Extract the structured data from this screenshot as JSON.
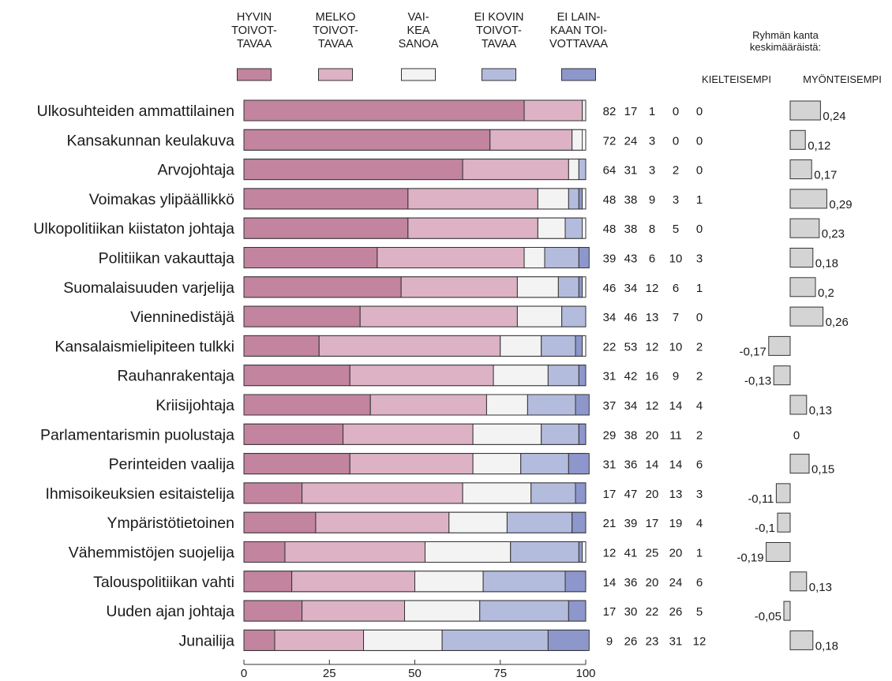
{
  "chart_data": {
    "type": "bar",
    "orientation": "horizontal",
    "stacked": true,
    "xlim": [
      0,
      100
    ],
    "x_ticks": [
      "0",
      "25",
      "50",
      "75",
      "100"
    ],
    "legend": [
      {
        "label_lines": [
          "HYVIN",
          "TOIVOT-",
          "TAVAA"
        ],
        "color": "#c2849f"
      },
      {
        "label_lines": [
          "MELKO",
          "TOIVOT-",
          "TAVAA"
        ],
        "color": "#dcb2c4"
      },
      {
        "label_lines": [
          "VAI-",
          "KEA",
          "SANOA"
        ],
        "color": "#f3f3f3"
      },
      {
        "label_lines": [
          "EI KOVIN",
          "TOIVOT-",
          "TAVAA"
        ],
        "color": "#b4bcdd"
      },
      {
        "label_lines": [
          "EI LAIN-",
          "KAAN TOI-",
          "VOTTAVAA"
        ],
        "color": "#8d97cb"
      }
    ],
    "categories": [
      "Ulkosuhteiden ammattilainen",
      "Kansakunnan keulakuva",
      "Arvojohtaja",
      "Voimakas ylipäällikkö",
      "Ulkopolitiikan kiistaton johtaja",
      "Politiikan vakauttaja",
      "Suomalaisuuden varjelija",
      "Vienninedistäjä",
      "Kansalaismielipiteen tulkki",
      "Rauhanrakentaja",
      "Kriisijohtaja",
      "Parlamentarismin puolustaja",
      "Perinteiden vaalija",
      "Ihmisoikeuksien esitaistelija",
      "Ympäristötietoinen",
      "Vähemmistöjen suojelija",
      "Talouspolitiikan vahti",
      "Uuden ajan johtaja",
      "Junailija"
    ],
    "values": [
      [
        82,
        17,
        1,
        0,
        0
      ],
      [
        72,
        24,
        3,
        0,
        0
      ],
      [
        64,
        31,
        3,
        2,
        0
      ],
      [
        48,
        38,
        9,
        3,
        1
      ],
      [
        48,
        38,
        8,
        5,
        0
      ],
      [
        39,
        43,
        6,
        10,
        3
      ],
      [
        46,
        34,
        12,
        6,
        1
      ],
      [
        34,
        46,
        13,
        7,
        0
      ],
      [
        22,
        53,
        12,
        10,
        2
      ],
      [
        31,
        42,
        16,
        9,
        2
      ],
      [
        37,
        34,
        12,
        14,
        4
      ],
      [
        29,
        38,
        20,
        11,
        2
      ],
      [
        31,
        36,
        14,
        14,
        6
      ],
      [
        17,
        47,
        20,
        13,
        3
      ],
      [
        21,
        39,
        17,
        19,
        4
      ],
      [
        12,
        41,
        25,
        20,
        1
      ],
      [
        14,
        36,
        20,
        24,
        6
      ],
      [
        17,
        30,
        22,
        26,
        5
      ],
      [
        9,
        26,
        23,
        31,
        12
      ]
    ],
    "group_title_lines": [
      "Ryhmän kanta",
      "keskimääräistä:"
    ],
    "group_negative_label": "KIELTEISEMPI",
    "group_positive_label": "MYÖNTEISEMPI",
    "group_values": [
      0.24,
      0.12,
      0.17,
      0.29,
      0.23,
      0.18,
      0.2,
      0.26,
      -0.17,
      -0.13,
      0.13,
      0,
      0.15,
      -0.11,
      -0.1,
      -0.19,
      0.13,
      -0.05,
      0.18
    ],
    "group_value_labels": [
      "0,24",
      "0,12",
      "0,17",
      "0,29",
      "0,23",
      "0,18",
      "0,2",
      "0,26",
      "-0,17",
      "-0,13",
      "0,13",
      "0",
      "0,15",
      "-0,11",
      "-0,1",
      "-0,19",
      "0,13",
      "-0,05",
      "0,18"
    ],
    "group_bar_color": "#d4d4d4"
  }
}
